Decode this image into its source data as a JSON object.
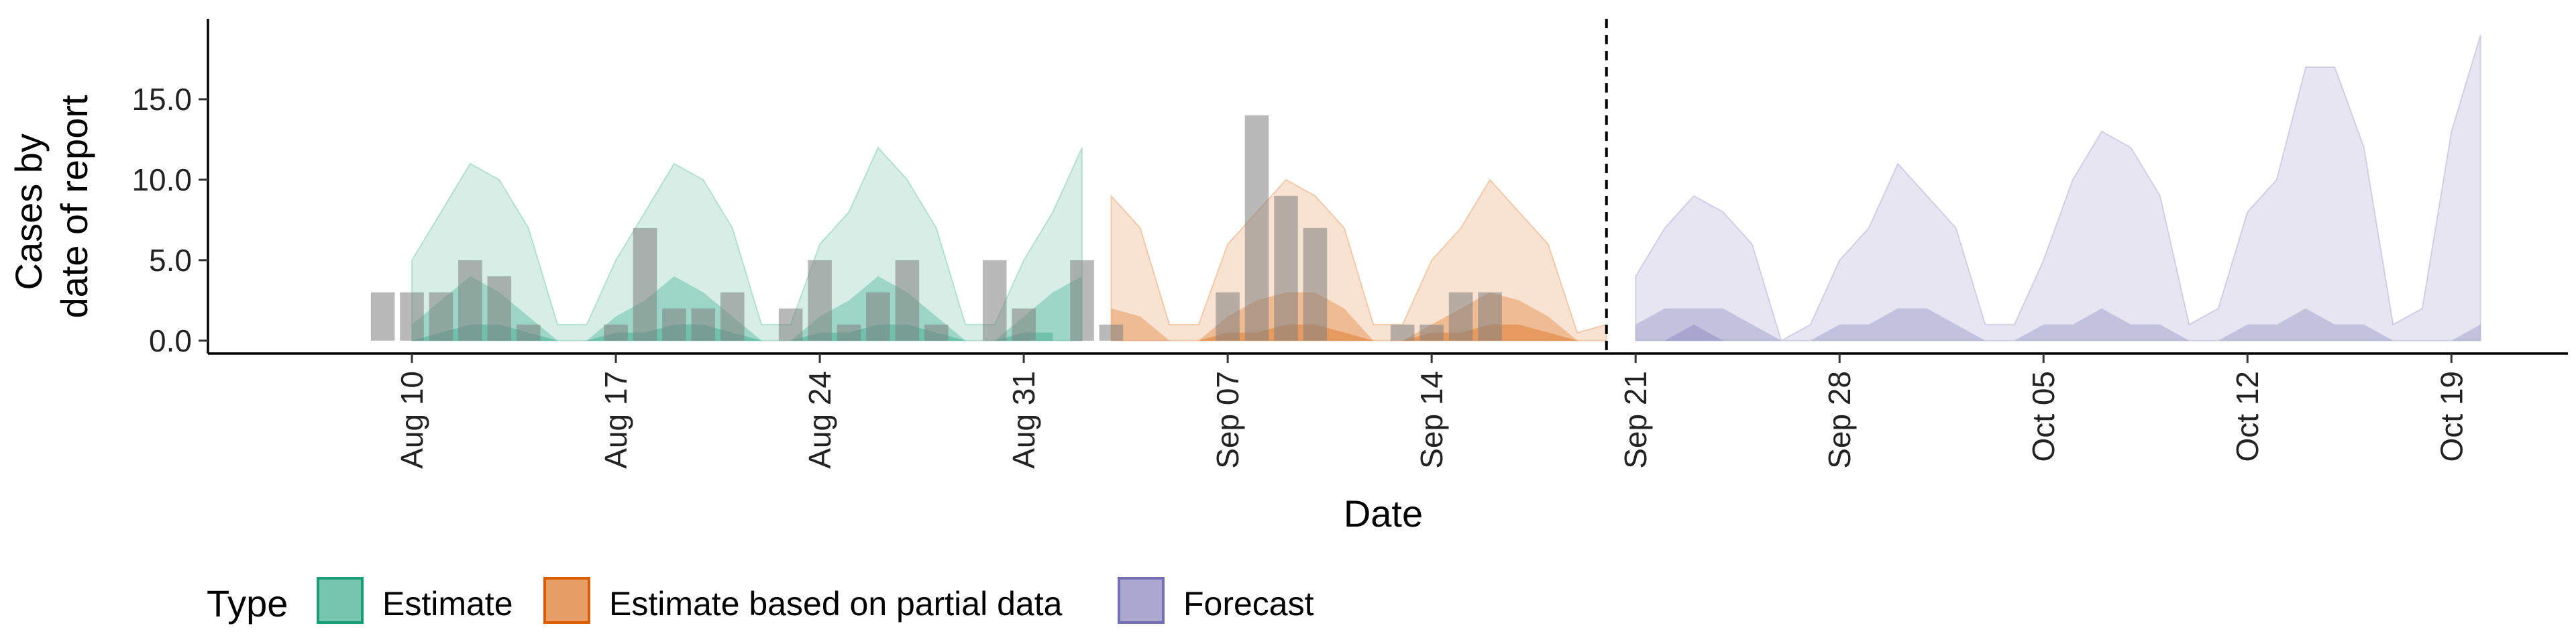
{
  "chart_data": {
    "type": "area",
    "title": "",
    "xlabel": "Date",
    "ylabel": [
      "Cases by",
      "date of report"
    ],
    "x_ticks": [
      "Aug 10",
      "Aug 17",
      "Aug 24",
      "Aug 31",
      "Sep 07",
      "Sep 14",
      "Sep 21",
      "Sep 28",
      "Oct 05",
      "Oct 12",
      "Oct 19"
    ],
    "y_ticks": [
      "0.0",
      "5.0",
      "10.0",
      "15.0"
    ],
    "ylim": [
      -0.8,
      20
    ],
    "xlim": [
      "2020-08-03",
      "2020-10-23"
    ],
    "forecast_start": "2020-09-20",
    "grid": false,
    "legend": {
      "title": "Type",
      "position": "bottom-left",
      "entries": [
        {
          "label": "Estimate",
          "color": "#1B9E77"
        },
        {
          "label": "Estimate based on partial data",
          "color": "#D95F02"
        },
        {
          "label": "Forecast",
          "color": "#7570B3"
        }
      ]
    },
    "series": [
      {
        "name": "Estimate",
        "color": "#1B9E77",
        "dates": [
          "2020-08-10",
          "2020-08-11",
          "2020-08-12",
          "2020-08-13",
          "2020-08-14",
          "2020-08-15",
          "2020-08-16",
          "2020-08-17",
          "2020-08-18",
          "2020-08-19",
          "2020-08-20",
          "2020-08-21",
          "2020-08-22",
          "2020-08-23",
          "2020-08-24",
          "2020-08-25",
          "2020-08-26",
          "2020-08-27",
          "2020-08-28",
          "2020-08-29",
          "2020-08-30",
          "2020-08-31",
          "2020-09-01"
        ],
        "upper_90": [
          5,
          8,
          11,
          10,
          7,
          1,
          1,
          5,
          8,
          11,
          10,
          7,
          1,
          1,
          6,
          8,
          12,
          10,
          7,
          1,
          1,
          5,
          8
        ],
        "upper_50": [
          1,
          2.5,
          4,
          3,
          1.5,
          0,
          0,
          1.5,
          2.5,
          4,
          3,
          1.5,
          0,
          0,
          1.5,
          2.5,
          4,
          3,
          1.5,
          0,
          0,
          1.5,
          3
        ],
        "lower_50": [
          0,
          0.5,
          1,
          1,
          0.5,
          0,
          0,
          0.5,
          0.5,
          1,
          1,
          0.5,
          0,
          0,
          0.5,
          0.5,
          1,
          1,
          0.5,
          0,
          0,
          0.5,
          0.5
        ],
        "lower_90": [
          0,
          0,
          0,
          0,
          0,
          0,
          0,
          0,
          0,
          0,
          0,
          0,
          0,
          0,
          0,
          0,
          0,
          0,
          0,
          0,
          0,
          0,
          0
        ],
        "tail_end": {
          "date": "2020-09-02",
          "upper_90": 12,
          "upper_50": 4
        }
      },
      {
        "name": "Estimate based on partial data",
        "color": "#D95F02",
        "dates": [
          "2020-09-03",
          "2020-09-04",
          "2020-09-05",
          "2020-09-06",
          "2020-09-07",
          "2020-09-08",
          "2020-09-09",
          "2020-09-10",
          "2020-09-11",
          "2020-09-12",
          "2020-09-13",
          "2020-09-14",
          "2020-09-15",
          "2020-09-16",
          "2020-09-17",
          "2020-09-18",
          "2020-09-19",
          "2020-09-20"
        ],
        "upper_90": [
          9,
          7,
          1,
          1,
          6,
          8,
          10,
          9,
          7,
          1,
          1,
          5,
          7,
          10,
          8,
          6,
          0.5,
          1
        ],
        "upper_50": [
          2,
          1.5,
          0,
          0,
          1.5,
          2.5,
          3,
          3,
          2,
          0,
          0,
          1,
          2,
          3,
          2.5,
          1.5,
          0,
          0
        ],
        "lower_50": [
          0,
          0,
          0,
          0,
          0.5,
          0.5,
          1,
          1,
          0.5,
          0,
          0,
          0.5,
          0.5,
          1,
          1,
          0.5,
          0,
          0
        ],
        "lower_90": [
          0,
          0,
          0,
          0,
          0,
          0,
          0,
          0,
          0,
          0,
          0,
          0,
          0,
          0,
          0,
          0,
          0,
          0
        ]
      },
      {
        "name": "Forecast",
        "color": "#7570B3",
        "dates": [
          "2020-09-21",
          "2020-09-22",
          "2020-09-23",
          "2020-09-24",
          "2020-09-25",
          "2020-09-26",
          "2020-09-27",
          "2020-09-28",
          "2020-09-29",
          "2020-09-30",
          "2020-10-01",
          "2020-10-02",
          "2020-10-03",
          "2020-10-04",
          "2020-10-05",
          "2020-10-06",
          "2020-10-07",
          "2020-10-08",
          "2020-10-09",
          "2020-10-10",
          "2020-10-11",
          "2020-10-12",
          "2020-10-13",
          "2020-10-14",
          "2020-10-15",
          "2020-10-16",
          "2020-10-17",
          "2020-10-18",
          "2020-10-19",
          "2020-10-20"
        ],
        "upper_90": [
          4,
          7,
          9,
          8,
          6,
          0,
          1,
          5,
          7,
          11,
          9,
          7,
          1,
          1,
          5,
          10,
          13,
          12,
          9,
          1,
          2,
          8,
          10,
          17,
          17,
          12,
          1,
          2,
          13,
          19
        ],
        "upper_50": [
          1,
          2,
          2,
          2,
          1,
          0,
          0,
          1,
          1,
          2,
          2,
          1,
          0,
          0,
          1,
          1,
          2,
          1,
          1,
          0,
          0,
          1,
          1,
          2,
          1,
          1,
          0,
          0,
          0,
          1
        ],
        "lower_50": [
          0,
          0,
          1,
          0,
          0,
          0,
          0,
          0,
          0,
          0,
          0,
          0,
          0,
          0,
          0,
          0,
          0,
          0,
          0,
          0,
          0,
          0,
          0,
          0,
          0,
          0,
          0,
          0,
          0,
          0
        ],
        "lower_90": [
          0,
          0,
          0,
          0,
          0,
          0,
          0,
          0,
          0,
          0,
          0,
          0,
          0,
          0,
          0,
          0,
          0,
          0,
          0,
          0,
          0,
          0,
          0,
          0,
          0,
          0,
          0,
          0,
          0,
          0
        ]
      }
    ],
    "reported_cases": {
      "color": "#808080",
      "dates": [
        "2020-08-09",
        "2020-08-10",
        "2020-08-11",
        "2020-08-12",
        "2020-08-13",
        "2020-08-14",
        "2020-08-15",
        "2020-08-16",
        "2020-08-17",
        "2020-08-18",
        "2020-08-19",
        "2020-08-20",
        "2020-08-21",
        "2020-08-22",
        "2020-08-23",
        "2020-08-24",
        "2020-08-25",
        "2020-08-26",
        "2020-08-27",
        "2020-08-28",
        "2020-08-29",
        "2020-08-30",
        "2020-08-31",
        "2020-09-01",
        "2020-09-02",
        "2020-09-03",
        "2020-09-04",
        "2020-09-05",
        "2020-09-06",
        "2020-09-07",
        "2020-09-08",
        "2020-09-09",
        "2020-09-10",
        "2020-09-11",
        "2020-09-12",
        "2020-09-13",
        "2020-09-14",
        "2020-09-15",
        "2020-09-16",
        "2020-09-17",
        "2020-09-18",
        "2020-09-19"
      ],
      "values": [
        3,
        3,
        3,
        5,
        4,
        1,
        0,
        0,
        1,
        7,
        2,
        2,
        3,
        0,
        2,
        5,
        1,
        3,
        5,
        1,
        0,
        5,
        2,
        0,
        5,
        1,
        0,
        0,
        0,
        3,
        14,
        9,
        7,
        0,
        0,
        1,
        1,
        3,
        3,
        0,
        0,
        0
      ]
    }
  }
}
